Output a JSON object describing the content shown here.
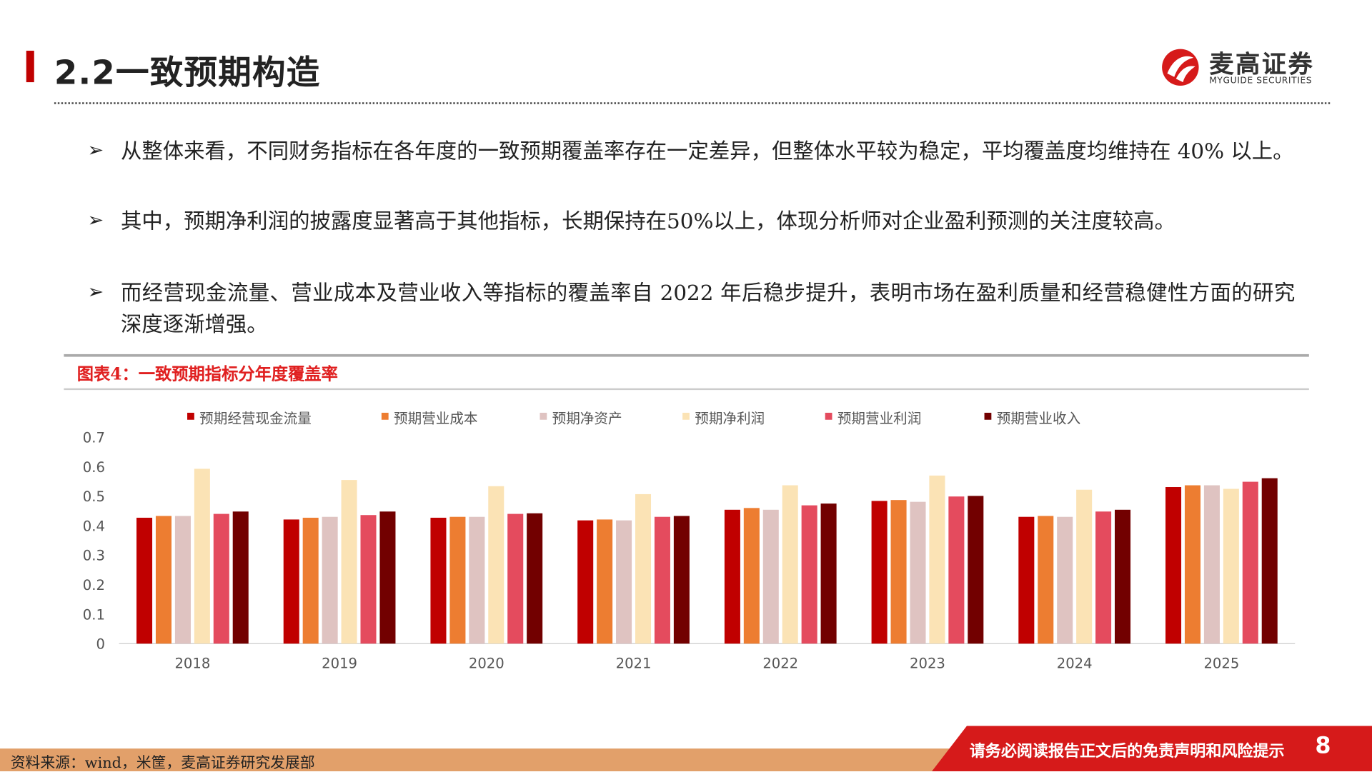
{
  "header": {
    "title": "2.2一致预期构造",
    "logo_name": "麦高证券",
    "logo_en": "MYGUIDE SECURITIES"
  },
  "bullets": [
    "从整体来看，不同财务指标在各年度的一致预期覆盖率存在一定差异，但整体水平较为稳定，平均覆盖度均维持在 40% 以上。",
    "其中，预期净利润的披露度显著高于其他指标，长期保持在50%以上，体现分析师对企业盈利预测的关注度较高。",
    "而经营现金流量、营业成本及营业收入等指标的覆盖率自 2022 年后稳步提升，表明市场在盈利质量和经营稳健性方面的研究深度逐渐增强。"
  ],
  "bullet_icon": "arrow-right-icon",
  "chart_title": "图表4：一致预期指标分年度覆盖率",
  "chart_data": {
    "type": "bar",
    "categories": [
      "2018",
      "2019",
      "2020",
      "2021",
      "2022",
      "2023",
      "2024",
      "2025"
    ],
    "ylim": [
      0,
      0.7
    ],
    "yticks": [
      "0",
      "0.1",
      "0.2",
      "0.3",
      "0.4",
      "0.5",
      "0.6",
      "0.7"
    ],
    "grid": false,
    "legend": "top",
    "series": [
      {
        "name": "预期经营现金流量",
        "color": "#c00000",
        "values": [
          0.427,
          0.421,
          0.427,
          0.418,
          0.454,
          0.484,
          0.43,
          0.531
        ]
      },
      {
        "name": "预期营业成本",
        "color": "#ed7d31",
        "values": [
          0.433,
          0.427,
          0.43,
          0.421,
          0.46,
          0.487,
          0.433,
          0.537
        ]
      },
      {
        "name": "预期净资产",
        "color": "#dfc3c1",
        "values": [
          0.433,
          0.43,
          0.43,
          0.418,
          0.454,
          0.481,
          0.43,
          0.537
        ]
      },
      {
        "name": "预期净利润",
        "color": "#fbe3b5",
        "values": [
          0.593,
          0.555,
          0.534,
          0.507,
          0.537,
          0.57,
          0.522,
          0.525
        ]
      },
      {
        "name": "预期营业利润",
        "color": "#e44b5e",
        "values": [
          0.44,
          0.436,
          0.44,
          0.43,
          0.469,
          0.499,
          0.448,
          0.549
        ]
      },
      {
        "name": "预期营业收入",
        "color": "#720000",
        "values": [
          0.448,
          0.448,
          0.442,
          0.433,
          0.475,
          0.501,
          0.454,
          0.561
        ]
      }
    ]
  },
  "footer": {
    "source": "资料来源：wind，米筐，麦高证券研究发展部",
    "disclaimer": "请务必阅读报告正文后的免责声明和风险提示",
    "page": "8"
  }
}
